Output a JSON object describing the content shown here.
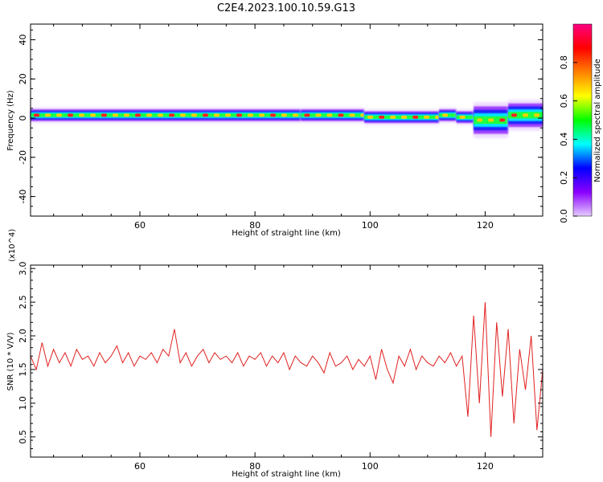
{
  "chart_data": [
    {
      "type": "heatmap",
      "title": "C2E4.2023.100.10.59.G13",
      "xlabel": "Height of straight line (km)",
      "ylabel": "Frequency (Hz)",
      "xlim": [
        41,
        130
      ],
      "ylim": [
        -50,
        48
      ],
      "x_ticks": [
        60,
        80,
        100,
        120
      ],
      "y_ticks": [
        -40,
        -20,
        0,
        20,
        40
      ],
      "colorbar": {
        "label": "Normalized spectral amplitude",
        "range": [
          0,
          1
        ],
        "ticks": [
          0.0,
          0.2,
          0.4,
          0.6,
          0.8
        ],
        "colors": [
          "#e6ccff",
          "#8a00ff",
          "#0000ff",
          "#00ffff",
          "#00ff00",
          "#ffff00",
          "#ff8000",
          "#ff0000",
          "#ff0080"
        ]
      },
      "band": {
        "x_segments": [
          41,
          88,
          99,
          112,
          115,
          118,
          124,
          130
        ],
        "center_hz": [
          1.5,
          1.5,
          0.5,
          1.5,
          0.5,
          -1,
          1.5,
          1
        ],
        "half_width_hz": [
          3,
          3,
          3,
          3,
          3,
          7,
          6,
          6
        ]
      }
    },
    {
      "type": "line",
      "xlabel": "Height of straight line (km)",
      "ylabel": "SNR (10 * V/V)",
      "y_multiplier": "(x10^4)",
      "xlim": [
        41,
        130
      ],
      "ylim": [
        0.2,
        3.05
      ],
      "x_ticks": [
        60,
        80,
        100,
        120
      ],
      "y_ticks": [
        0.5,
        1.0,
        1.5,
        2.0,
        2.5,
        3.0
      ],
      "color": "#e02020",
      "series": [
        {
          "values_x": [
            41,
            42,
            43,
            44,
            45,
            46,
            47,
            48,
            49,
            50,
            51,
            52,
            53,
            54,
            55,
            56,
            57,
            58,
            59,
            60,
            61,
            62,
            63,
            64,
            65,
            66,
            67,
            68,
            69,
            70,
            71,
            72,
            73,
            74,
            75,
            76,
            77,
            78,
            79,
            80,
            81,
            82,
            83,
            84,
            85,
            86,
            87,
            88,
            89,
            90,
            91,
            92,
            93,
            94,
            95,
            96,
            97,
            98,
            99,
            100,
            101,
            102,
            103,
            104,
            105,
            106,
            107,
            108,
            109,
            110,
            111,
            112,
            113,
            114,
            115,
            116,
            117,
            118,
            119,
            120,
            121,
            122,
            123,
            124,
            125,
            126,
            127,
            128,
            129,
            130
          ],
          "values_y": [
            1.7,
            1.5,
            1.9,
            1.55,
            1.8,
            1.6,
            1.75,
            1.55,
            1.8,
            1.65,
            1.7,
            1.55,
            1.75,
            1.6,
            1.7,
            1.85,
            1.6,
            1.75,
            1.55,
            1.7,
            1.65,
            1.75,
            1.6,
            1.8,
            1.7,
            2.1,
            1.6,
            1.75,
            1.55,
            1.7,
            1.8,
            1.6,
            1.75,
            1.65,
            1.7,
            1.6,
            1.75,
            1.55,
            1.7,
            1.65,
            1.75,
            1.55,
            1.7,
            1.6,
            1.75,
            1.5,
            1.7,
            1.6,
            1.55,
            1.7,
            1.6,
            1.45,
            1.75,
            1.55,
            1.6,
            1.7,
            1.5,
            1.65,
            1.55,
            1.7,
            1.35,
            1.8,
            1.5,
            1.3,
            1.7,
            1.55,
            1.8,
            1.5,
            1.7,
            1.6,
            1.55,
            1.7,
            1.6,
            1.75,
            1.55,
            1.7,
            0.8,
            2.3,
            1.0,
            2.5,
            0.5,
            2.2,
            1.1,
            2.1,
            0.7,
            1.8,
            1.2,
            2.0,
            0.6,
            1.5
          ]
        }
      ]
    }
  ]
}
